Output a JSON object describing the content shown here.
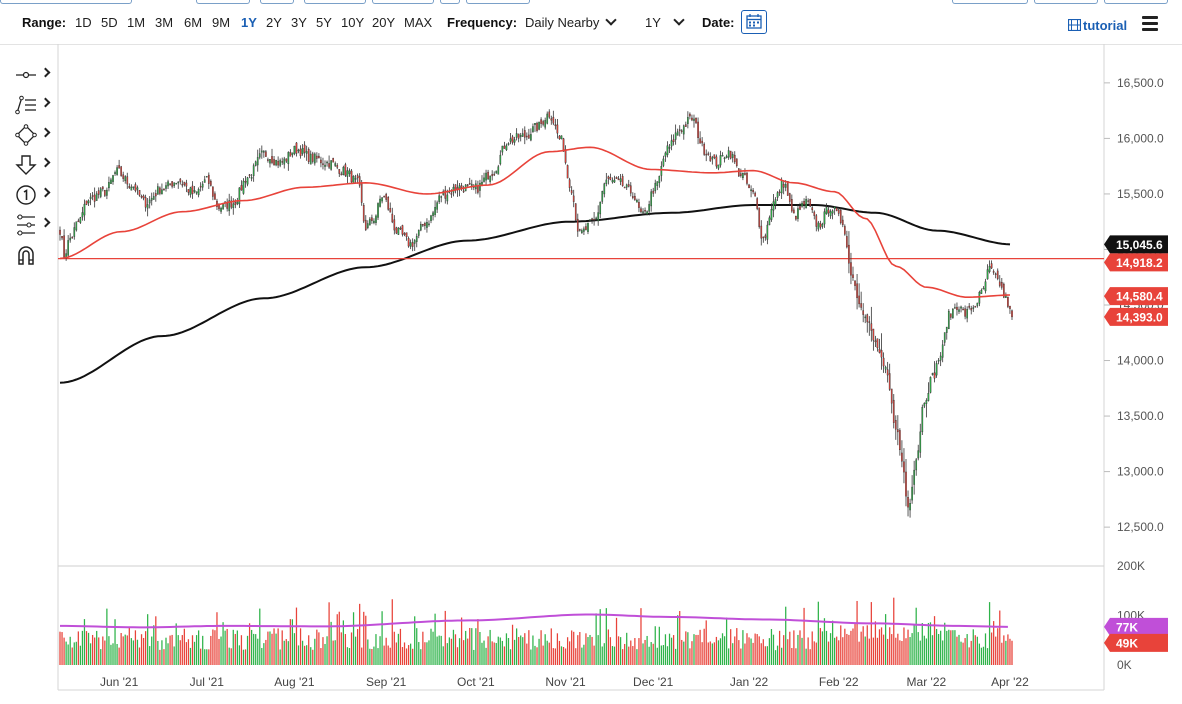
{
  "toolbar": {
    "range_label": "Range:",
    "ranges": [
      "1D",
      "5D",
      "1M",
      "3M",
      "6M",
      "9M",
      "1Y",
      "2Y",
      "3Y",
      "5Y",
      "10Y",
      "20Y",
      "MAX"
    ],
    "active_range": "1Y",
    "frequency_label": "Frequency:",
    "frequency_value": "Daily Nearby",
    "period_value": "1Y",
    "date_label": "Date:",
    "tutorial_label": "tutorial"
  },
  "tools": [
    {
      "icon": "crosshair-line-icon"
    },
    {
      "icon": "trend-lines-icon"
    },
    {
      "icon": "shapes-icon"
    },
    {
      "icon": "arrow-marker-icon"
    },
    {
      "icon": "number-marker-icon"
    },
    {
      "icon": "indicators-icon"
    },
    {
      "icon": "magnet-icon"
    }
  ],
  "chart_data": {
    "type": "candlestick",
    "x_tick_labels": [
      "Jun '21",
      "Jul '21",
      "Aug '21",
      "Sep '21",
      "Oct '21",
      "Nov '21",
      "Dec '21",
      "Jan '22",
      "Feb '22",
      "Mar '22",
      "Apr '22"
    ],
    "price_axis": {
      "ticks": [
        "12,500.0",
        "13,000.0",
        "13,500.0",
        "14,000.0",
        "14,500.0",
        "15,000.0",
        "15,500.0",
        "16,000.0",
        "16,500.0"
      ],
      "range": [
        12150,
        16850
      ]
    },
    "volume_axis": {
      "ticks": [
        "0K",
        "100K",
        "200K"
      ],
      "range": [
        0,
        200
      ]
    },
    "price_badges": [
      {
        "label": "15,045.6",
        "value": 15045.6,
        "color": "#111111",
        "series": "200-day moving average"
      },
      {
        "label": "14,918.2",
        "value": 14918.2,
        "color": "#e8433a",
        "series": "horizontal level"
      },
      {
        "label": "14,580.4",
        "value": 14580.4,
        "color": "#e8433a",
        "series": "50-day moving average"
      },
      {
        "label": "14,393.0",
        "value": 14393.0,
        "color": "#e8433a",
        "series": "last price"
      }
    ],
    "volume_badges": [
      {
        "label": "77K",
        "value": 77,
        "color": "#c04fd8",
        "series": "volume average"
      },
      {
        "label": "49K",
        "value": 49,
        "color": "#e8433a",
        "series": "last volume"
      }
    ],
    "horizontal_level": 14918.2,
    "colors": {
      "up": "#2fb34a",
      "down": "#e8433a",
      "ma50": "#e8433a",
      "ma200": "#111111",
      "vol_avg": "#c04fd8",
      "hline": "#e8433a"
    },
    "price_path_anchors": [
      [
        0,
        15180
      ],
      [
        2,
        14950
      ],
      [
        5,
        15100
      ],
      [
        9,
        15250
      ],
      [
        14,
        15450
      ],
      [
        22,
        15520
      ],
      [
        28,
        15700
      ],
      [
        35,
        15580
      ],
      [
        42,
        15420
      ],
      [
        50,
        15550
      ],
      [
        58,
        15620
      ],
      [
        66,
        15500
      ],
      [
        72,
        15620
      ],
      [
        78,
        15380
      ],
      [
        85,
        15420
      ],
      [
        92,
        15650
      ],
      [
        100,
        15860
      ],
      [
        108,
        15780
      ],
      [
        116,
        15900
      ],
      [
        124,
        15820
      ],
      [
        132,
        15780
      ],
      [
        140,
        15700
      ],
      [
        146,
        15600
      ],
      [
        150,
        15200
      ],
      [
        154,
        15280
      ],
      [
        158,
        15480
      ],
      [
        166,
        15150
      ],
      [
        172,
        15050
      ],
      [
        180,
        15250
      ],
      [
        188,
        15500
      ],
      [
        196,
        15560
      ],
      [
        204,
        15550
      ],
      [
        212,
        15700
      ],
      [
        220,
        15980
      ],
      [
        228,
        16020
      ],
      [
        234,
        16100
      ],
      [
        240,
        16220
      ],
      [
        246,
        15980
      ],
      [
        250,
        15600
      ],
      [
        255,
        15140
      ],
      [
        262,
        15250
      ],
      [
        268,
        15620
      ],
      [
        274,
        15600
      ],
      [
        280,
        15520
      ],
      [
        286,
        15300
      ],
      [
        292,
        15560
      ],
      [
        298,
        15900
      ],
      [
        304,
        16080
      ],
      [
        310,
        16180
      ],
      [
        316,
        15900
      ],
      [
        322,
        15780
      ],
      [
        328,
        15880
      ],
      [
        334,
        15680
      ],
      [
        340,
        15500
      ],
      [
        345,
        15100
      ],
      [
        350,
        15420
      ],
      [
        355,
        15600
      ],
      [
        360,
        15300
      ],
      [
        366,
        15420
      ],
      [
        372,
        15220
      ],
      [
        378,
        15380
      ],
      [
        384,
        15250
      ],
      [
        388,
        14800
      ],
      [
        392,
        14550
      ],
      [
        396,
        14350
      ],
      [
        400,
        14150
      ],
      [
        405,
        13900
      ],
      [
        410,
        13420
      ],
      [
        413,
        13100
      ],
      [
        416,
        12680
      ],
      [
        420,
        13120
      ],
      [
        424,
        13650
      ],
      [
        428,
        13850
      ],
      [
        432,
        14050
      ],
      [
        436,
        14400
      ],
      [
        440,
        14500
      ],
      [
        444,
        14420
      ],
      [
        448,
        14480
      ],
      [
        452,
        14600
      ],
      [
        456,
        14820
      ],
      [
        460,
        14720
      ],
      [
        464,
        14560
      ],
      [
        467,
        14393
      ]
    ],
    "ma50_anchors": [
      [
        0,
        14920
      ],
      [
        30,
        15160
      ],
      [
        60,
        15340
      ],
      [
        90,
        15440
      ],
      [
        120,
        15560
      ],
      [
        150,
        15600
      ],
      [
        180,
        15500
      ],
      [
        210,
        15580
      ],
      [
        240,
        15880
      ],
      [
        260,
        15920
      ],
      [
        290,
        15720
      ],
      [
        320,
        15690
      ],
      [
        340,
        15710
      ],
      [
        360,
        15600
      ],
      [
        380,
        15520
      ],
      [
        395,
        15280
      ],
      [
        410,
        14850
      ],
      [
        425,
        14660
      ],
      [
        445,
        14570
      ],
      [
        467,
        14590
      ]
    ],
    "ma200_anchors": [
      [
        0,
        13800
      ],
      [
        50,
        14220
      ],
      [
        100,
        14560
      ],
      [
        150,
        14840
      ],
      [
        200,
        15080
      ],
      [
        250,
        15250
      ],
      [
        300,
        15330
      ],
      [
        340,
        15400
      ],
      [
        370,
        15400
      ],
      [
        400,
        15330
      ],
      [
        430,
        15170
      ],
      [
        467,
        15045.6
      ]
    ]
  }
}
